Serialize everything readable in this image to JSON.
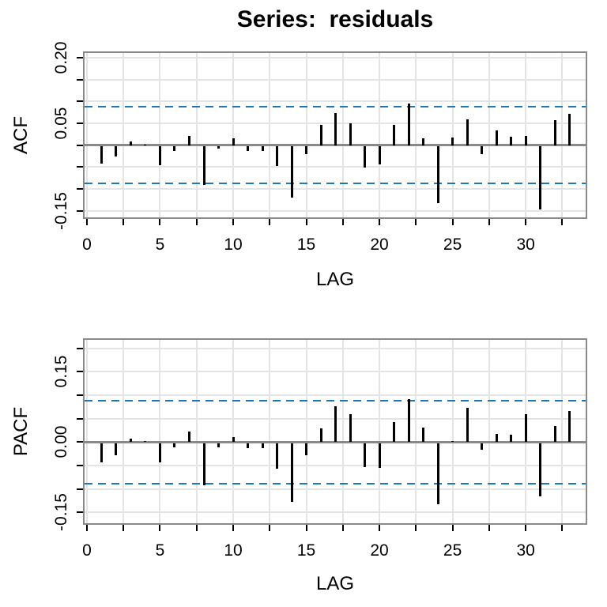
{
  "title": "Series:  residuals",
  "colors": {
    "confidence_band": "#1f78b4",
    "bar": "#000000",
    "grid": "#e4e4e4",
    "axis_frame": "#8a8a8a",
    "text": "#000000"
  },
  "chart_data": [
    {
      "type": "bar",
      "name": "acf-panel",
      "ylabel": "ACF",
      "xlabel": "LAG",
      "lags": [
        1,
        2,
        3,
        4,
        5,
        6,
        7,
        8,
        9,
        10,
        11,
        12,
        13,
        14,
        15,
        16,
        17,
        18,
        19,
        20,
        21,
        22,
        23,
        24,
        25,
        26,
        27,
        28,
        29,
        30,
        31,
        32,
        33
      ],
      "values": [
        -0.04,
        -0.023,
        0.008,
        0.002,
        -0.043,
        -0.011,
        0.022,
        -0.088,
        -0.005,
        0.016,
        -0.011,
        -0.01,
        -0.044,
        -0.117,
        -0.017,
        0.047,
        0.073,
        0.05,
        -0.049,
        -0.042,
        0.047,
        0.096,
        0.016,
        -0.13,
        0.017,
        0.059,
        -0.017,
        0.034,
        0.02,
        0.021,
        -0.144,
        0.058,
        0.072
      ],
      "confidence_band": 0.088,
      "confidence_band_style": "dashed-blue",
      "grid": true,
      "ylim": [
        -0.165,
        0.211
      ],
      "xlim": [
        -0.16,
        34.1
      ],
      "yticks": [
        0.2,
        0.15,
        0.1,
        0.05,
        0.0,
        -0.05,
        -0.1,
        -0.15
      ],
      "ytick_labels": [
        {
          "value": 0.2,
          "label": "0.20"
        },
        {
          "value": 0.05,
          "label": "0.05"
        },
        {
          "value": -0.15,
          "label": "-0.15"
        }
      ],
      "xtick_step": 2.5,
      "xtick_max": 32.5,
      "xtick_labels": [
        {
          "value": 0,
          "label": "0"
        },
        {
          "value": 5,
          "label": "5"
        },
        {
          "value": 10,
          "label": "10"
        },
        {
          "value": 15,
          "label": "15"
        },
        {
          "value": 20,
          "label": "20"
        },
        {
          "value": 25,
          "label": "25"
        },
        {
          "value": 30,
          "label": "30"
        }
      ]
    },
    {
      "type": "bar",
      "name": "pacf-panel",
      "ylabel": "PACF",
      "xlabel": "LAG",
      "lags": [
        1,
        2,
        3,
        4,
        5,
        6,
        7,
        8,
        9,
        10,
        11,
        12,
        13,
        14,
        15,
        16,
        17,
        18,
        19,
        20,
        21,
        22,
        23,
        24,
        25,
        26,
        27,
        28,
        29,
        30,
        31,
        32,
        33
      ],
      "values": [
        -0.04,
        -0.026,
        0.007,
        0.001,
        -0.041,
        -0.009,
        0.022,
        -0.09,
        -0.009,
        0.01,
        -0.01,
        -0.01,
        -0.054,
        -0.125,
        -0.026,
        0.03,
        0.077,
        0.059,
        -0.051,
        -0.052,
        0.043,
        0.092,
        0.031,
        -0.13,
        0.003,
        0.073,
        -0.014,
        0.017,
        0.016,
        0.059,
        -0.113,
        0.034,
        0.066
      ],
      "confidence_band": 0.088,
      "confidence_band_style": "dashed-blue",
      "grid": true,
      "ylim": [
        -0.173,
        0.218
      ],
      "xlim": [
        -0.16,
        34.1
      ],
      "yticks": [
        0.2,
        0.15,
        0.1,
        0.05,
        0.0,
        -0.05,
        -0.1,
        -0.15
      ],
      "ytick_labels": [
        {
          "value": 0.15,
          "label": "0.15"
        },
        {
          "value": 0.0,
          "label": "0.00"
        },
        {
          "value": -0.15,
          "label": "-0.15"
        }
      ],
      "xtick_step": 2.5,
      "xtick_max": 32.5,
      "xtick_labels": [
        {
          "value": 0,
          "label": "0"
        },
        {
          "value": 5,
          "label": "5"
        },
        {
          "value": 10,
          "label": "10"
        },
        {
          "value": 15,
          "label": "15"
        },
        {
          "value": 20,
          "label": "20"
        },
        {
          "value": 25,
          "label": "25"
        },
        {
          "value": 30,
          "label": "30"
        }
      ]
    }
  ]
}
